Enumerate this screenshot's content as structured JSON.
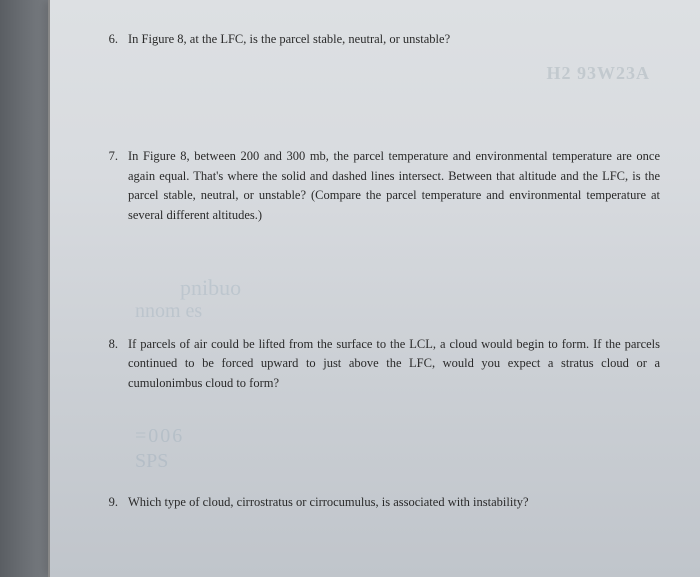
{
  "page": {
    "background_gradient": [
      "#dde0e3",
      "#d8dbdf",
      "#cdd1d6",
      "#c0c5cb"
    ],
    "text_color": "#2a2a2a",
    "font_family": "Georgia, Times New Roman, serif",
    "font_size_pt": 12.5,
    "line_height": 1.55
  },
  "questions": {
    "q6": {
      "number": "6.",
      "text": "In Figure 8, at the LFC, is the parcel stable, neutral, or unstable?"
    },
    "q7": {
      "number": "7.",
      "text": "In Figure 8, between 200 and 300 mb, the parcel temperature and environmental temperature are once again equal. That's where the solid and dashed lines intersect. Between that altitude and the LFC, is the parcel stable, neutral, or unstable? (Compare the parcel temperature and environmental temperature at several different altitudes.)"
    },
    "q8": {
      "number": "8.",
      "text": "If parcels of air could be lifted from the surface to the LCL, a cloud would begin to form. If the parcels continued to be forced upward to just above the LFC, would you expect a stratus cloud or a cumulonimbus cloud to form?"
    },
    "q9": {
      "number": "9.",
      "text": "Which type of cloud, cirrostratus or cirrocumulus, is associated with instability?"
    }
  },
  "ghost_text": {
    "g1": "pnibuo",
    "g2": "nnom  es",
    "g3": "=006",
    "g4": "SPS",
    "header": "H2 93W23A"
  }
}
